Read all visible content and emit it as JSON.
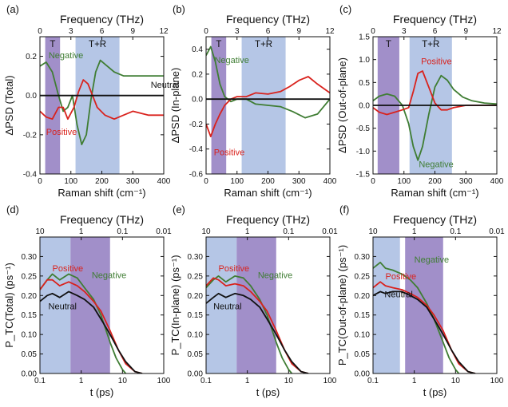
{
  "chart_data": [
    {
      "panel": "(a)",
      "type": "line",
      "xlabel": "Raman shift (cm⁻¹)",
      "ylabel": "ΔPSD (Total)",
      "top_axis": {
        "label": "Frequency (THz)",
        "ticks": [
          "0",
          "3",
          "6",
          "9",
          "12"
        ]
      },
      "xlim": [
        0,
        400
      ],
      "ylim": [
        -0.4,
        0.3
      ],
      "xticks": [
        "0",
        "100",
        "200",
        "300",
        "400"
      ],
      "yticks": [
        "-0.4",
        "-0.2",
        "0.0",
        "0.2"
      ],
      "bands": [
        {
          "label": "T",
          "x": [
            17,
            65
          ],
          "color": "#a18fc9"
        },
        {
          "label": "T+R",
          "x": [
            115,
            257
          ],
          "color": "#b5c6e6"
        }
      ],
      "series": [
        {
          "name": "Negative",
          "color": "#3f7d33",
          "x": [
            0,
            20,
            40,
            60,
            75,
            90,
            105,
            120,
            135,
            150,
            165,
            180,
            195,
            210,
            240,
            270,
            300,
            350,
            400
          ],
          "y": [
            0.15,
            0.17,
            0.12,
            0.0,
            -0.08,
            -0.06,
            0.0,
            -0.15,
            -0.25,
            -0.2,
            -0.02,
            0.12,
            0.18,
            0.16,
            0.12,
            0.1,
            0.1,
            0.1,
            0.1
          ]
        },
        {
          "name": "Positive",
          "color": "#d9221d",
          "x": [
            0,
            20,
            40,
            60,
            75,
            90,
            110,
            125,
            140,
            155,
            170,
            185,
            210,
            240,
            270,
            300,
            350,
            400
          ],
          "y": [
            -0.08,
            -0.11,
            -0.12,
            -0.06,
            -0.06,
            -0.12,
            -0.06,
            0.02,
            0.08,
            0.06,
            0.0,
            -0.06,
            -0.1,
            -0.12,
            -0.1,
            -0.08,
            -0.1,
            -0.1
          ]
        },
        {
          "name": "Neutral",
          "color": "#111111",
          "x": [
            0,
            400
          ],
          "y": [
            0,
            0
          ]
        }
      ],
      "annotations": [
        "Negative",
        "Positive",
        "Neutral"
      ]
    },
    {
      "panel": "(b)",
      "type": "line",
      "xlabel": "Raman shift (cm⁻¹)",
      "ylabel": "ΔPSD (In-plane)",
      "top_axis": {
        "label": "Frequency (THz)",
        "ticks": [
          "0",
          "3",
          "6",
          "9",
          "12"
        ]
      },
      "xlim": [
        0,
        400
      ],
      "ylim": [
        -0.6,
        0.5
      ],
      "xticks": [
        "0",
        "100",
        "200",
        "300",
        "400"
      ],
      "yticks": [
        "-0.6",
        "-0.4",
        "-0.2",
        "0.0",
        "0.2",
        "0.4"
      ],
      "bands": [
        {
          "label": "T",
          "x": [
            17,
            65
          ],
          "color": "#a18fc9"
        },
        {
          "label": "T+R",
          "x": [
            115,
            257
          ],
          "color": "#b5c6e6"
        }
      ],
      "series": [
        {
          "name": "Negative",
          "color": "#3f7d33",
          "x": [
            0,
            15,
            30,
            45,
            60,
            80,
            100,
            130,
            160,
            200,
            240,
            280,
            320,
            360,
            400
          ],
          "y": [
            0.35,
            0.42,
            0.3,
            0.12,
            0.02,
            -0.02,
            0.0,
            0.0,
            -0.04,
            -0.05,
            -0.06,
            -0.1,
            -0.15,
            -0.12,
            0.0
          ]
        },
        {
          "name": "Positive",
          "color": "#d9221d",
          "x": [
            0,
            15,
            30,
            45,
            60,
            80,
            100,
            130,
            160,
            200,
            240,
            270,
            300,
            330,
            360,
            400
          ],
          "y": [
            -0.2,
            -0.3,
            -0.2,
            -0.12,
            -0.05,
            0.0,
            0.02,
            0.02,
            0.05,
            0.04,
            0.06,
            0.1,
            0.15,
            0.18,
            0.12,
            0.05
          ]
        },
        {
          "name": "Neutral",
          "color": "#111111",
          "x": [
            0,
            400
          ],
          "y": [
            0,
            0
          ]
        }
      ],
      "annotations": [
        "Negative",
        "Positive"
      ]
    },
    {
      "panel": "(c)",
      "type": "line",
      "xlabel": "Raman shift (cm⁻¹)",
      "ylabel": "ΔPSD (Out-of-plane)",
      "top_axis": {
        "label": "Frequency (THz)",
        "ticks": [
          "0",
          "3",
          "6",
          "9",
          "12"
        ]
      },
      "xlim": [
        0,
        400
      ],
      "ylim": [
        -1.5,
        1.5
      ],
      "xticks": [
        "0",
        "100",
        "200",
        "300",
        "400"
      ],
      "yticks": [
        "-1.5",
        "-1.0",
        "-0.5",
        "0.0",
        "0.5",
        "1.0",
        "1.5"
      ],
      "bands": [
        {
          "label": "T",
          "x": [
            15,
            85
          ],
          "color": "#a18fc9"
        },
        {
          "label": "T+R",
          "x": [
            118,
            255
          ],
          "color": "#b5c6e6"
        }
      ],
      "series": [
        {
          "name": "Negative",
          "color": "#3f7d33",
          "x": [
            0,
            20,
            45,
            70,
            95,
            115,
            130,
            145,
            160,
            180,
            200,
            220,
            240,
            260,
            290,
            320,
            360,
            400
          ],
          "y": [
            0.1,
            0.2,
            0.25,
            0.2,
            0.0,
            -0.4,
            -0.9,
            -1.2,
            -0.9,
            -0.2,
            0.4,
            0.65,
            0.55,
            0.35,
            0.18,
            0.1,
            0.05,
            0.03
          ]
        },
        {
          "name": "Positive",
          "color": "#d9221d",
          "x": [
            0,
            20,
            45,
            70,
            95,
            115,
            130,
            145,
            160,
            180,
            200,
            220,
            240,
            260,
            300,
            350,
            400
          ],
          "y": [
            -0.05,
            -0.15,
            -0.2,
            -0.15,
            -0.1,
            -0.05,
            0.3,
            0.7,
            0.75,
            0.4,
            0.05,
            -0.1,
            -0.1,
            -0.05,
            0.0,
            0.0,
            0.0
          ]
        },
        {
          "name": "Neutral",
          "color": "#111111",
          "x": [
            0,
            400
          ],
          "y": [
            0,
            0
          ]
        }
      ],
      "annotations": [
        "Positive",
        "Negative"
      ]
    },
    {
      "panel": "(d)",
      "type": "line",
      "xlabel": "t (ps)",
      "ylabel": "P_TC(Total) (ps⁻¹)",
      "top_axis": {
        "label": "Frequency (THz)",
        "ticks": [
          "10",
          "1",
          "0.1",
          "0.01"
        ]
      },
      "xscale": "log",
      "xlim": [
        0.1,
        100
      ],
      "ylim": [
        0,
        0.35
      ],
      "xticks": [
        "0.1",
        "1",
        "10",
        "100"
      ],
      "yticks": [
        "0.00",
        "0.05",
        "0.10",
        "0.15",
        "0.20",
        "0.25",
        "0.30"
      ],
      "bands": [
        {
          "x": [
            0.1,
            0.55
          ],
          "color": "#b5c6e6"
        },
        {
          "x": [
            0.55,
            5
          ],
          "color": "#a18fc9"
        }
      ],
      "series": [
        {
          "name": "Negative",
          "color": "#3f7d33",
          "x": [
            0.1,
            0.15,
            0.2,
            0.3,
            0.5,
            0.8,
            1.2,
            2,
            3,
            5,
            7,
            10,
            12
          ],
          "y": [
            0.215,
            0.24,
            0.255,
            0.24,
            0.255,
            0.245,
            0.22,
            0.19,
            0.15,
            0.08,
            0.04,
            0.01,
            0.0
          ]
        },
        {
          "name": "Positive",
          "color": "#d9221d",
          "x": [
            0.1,
            0.15,
            0.2,
            0.3,
            0.5,
            0.8,
            1.2,
            2,
            3,
            5,
            8,
            12,
            20,
            30
          ],
          "y": [
            0.215,
            0.24,
            0.24,
            0.225,
            0.235,
            0.225,
            0.21,
            0.185,
            0.16,
            0.11,
            0.06,
            0.025,
            0.005,
            0.0
          ]
        },
        {
          "name": "Neutral",
          "color": "#111111",
          "x": [
            0.1,
            0.15,
            0.2,
            0.3,
            0.5,
            0.8,
            1.2,
            2,
            3,
            5,
            8,
            12,
            20,
            30
          ],
          "y": [
            0.185,
            0.2,
            0.205,
            0.195,
            0.21,
            0.2,
            0.19,
            0.17,
            0.14,
            0.1,
            0.06,
            0.03,
            0.005,
            0.0
          ]
        }
      ],
      "annotations": [
        "Positive",
        "Negative",
        "Neutral"
      ]
    },
    {
      "panel": "(e)",
      "type": "line",
      "xlabel": "t (ps)",
      "ylabel": "P_TC(In-plane) (ps⁻¹)",
      "top_axis": {
        "label": "Frequency (THz)",
        "ticks": [
          "10",
          "1",
          "0.1",
          "0.01"
        ]
      },
      "xscale": "log",
      "xlim": [
        0.1,
        100
      ],
      "ylim": [
        0,
        0.35
      ],
      "xticks": [
        "0.1",
        "1",
        "10",
        "100"
      ],
      "yticks": [
        "0.00",
        "0.05",
        "0.10",
        "0.15",
        "0.20",
        "0.25",
        "0.30"
      ],
      "bands": [
        {
          "x": [
            0.1,
            0.55
          ],
          "color": "#b5c6e6"
        },
        {
          "x": [
            0.55,
            5
          ],
          "color": "#a18fc9"
        }
      ],
      "series": [
        {
          "name": "Negative",
          "color": "#3f7d33",
          "x": [
            0.1,
            0.15,
            0.2,
            0.3,
            0.5,
            0.8,
            1.2,
            2,
            3,
            5,
            7,
            10,
            12
          ],
          "y": [
            0.22,
            0.24,
            0.25,
            0.235,
            0.25,
            0.245,
            0.225,
            0.19,
            0.15,
            0.08,
            0.04,
            0.01,
            0.0
          ]
        },
        {
          "name": "Positive",
          "color": "#d9221d",
          "x": [
            0.1,
            0.15,
            0.2,
            0.3,
            0.5,
            0.8,
            1.2,
            2,
            3,
            5,
            8,
            12,
            20,
            30
          ],
          "y": [
            0.225,
            0.245,
            0.24,
            0.225,
            0.23,
            0.225,
            0.21,
            0.185,
            0.16,
            0.11,
            0.06,
            0.025,
            0.005,
            0.0
          ]
        },
        {
          "name": "Neutral",
          "color": "#111111",
          "x": [
            0.1,
            0.15,
            0.2,
            0.3,
            0.5,
            0.8,
            1.2,
            2,
            3,
            5,
            8,
            12,
            20,
            30
          ],
          "y": [
            0.18,
            0.195,
            0.205,
            0.195,
            0.205,
            0.2,
            0.19,
            0.17,
            0.14,
            0.1,
            0.06,
            0.03,
            0.005,
            0.0
          ]
        }
      ],
      "annotations": [
        "Positive",
        "Negative",
        "Neutral"
      ]
    },
    {
      "panel": "(f)",
      "type": "line",
      "xlabel": "t (ps)",
      "ylabel": "P_TC(Out-of-plane) (ps⁻¹)",
      "top_axis": {
        "label": "Frequency (THz)",
        "ticks": [
          "10",
          "1",
          "0.1",
          "0.01"
        ]
      },
      "xscale": "log",
      "xlim": [
        0.1,
        100
      ],
      "ylim": [
        0,
        0.35
      ],
      "xticks": [
        "0.1",
        "1",
        "10",
        "100"
      ],
      "yticks": [
        "0.00",
        "0.05",
        "0.10",
        "0.15",
        "0.20",
        "0.25",
        "0.30"
      ],
      "bands": [
        {
          "x": [
            0.1,
            0.45
          ],
          "color": "#b5c6e6"
        },
        {
          "x": [
            0.6,
            5
          ],
          "color": "#a18fc9"
        }
      ],
      "series": [
        {
          "name": "Negative",
          "color": "#3f7d33",
          "x": [
            0.1,
            0.15,
            0.2,
            0.3,
            0.5,
            0.8,
            1.2,
            2,
            3,
            5,
            7,
            10,
            12
          ],
          "y": [
            0.27,
            0.285,
            0.27,
            0.265,
            0.255,
            0.24,
            0.22,
            0.18,
            0.14,
            0.08,
            0.04,
            0.01,
            0.0
          ]
        },
        {
          "name": "Positive",
          "color": "#d9221d",
          "x": [
            0.1,
            0.15,
            0.2,
            0.3,
            0.5,
            0.8,
            1.2,
            2,
            3,
            5,
            8,
            12,
            20,
            30
          ],
          "y": [
            0.22,
            0.235,
            0.225,
            0.22,
            0.215,
            0.205,
            0.195,
            0.175,
            0.15,
            0.11,
            0.06,
            0.025,
            0.005,
            0.0
          ]
        },
        {
          "name": "Neutral",
          "color": "#111111",
          "x": [
            0.1,
            0.15,
            0.2,
            0.3,
            0.5,
            0.8,
            1.2,
            2,
            3,
            5,
            8,
            12,
            20,
            30
          ],
          "y": [
            0.2,
            0.21,
            0.205,
            0.21,
            0.21,
            0.2,
            0.19,
            0.17,
            0.14,
            0.1,
            0.06,
            0.03,
            0.005,
            0.0
          ]
        }
      ],
      "annotations": [
        "Positive",
        "Negative",
        "Neutral"
      ]
    }
  ]
}
